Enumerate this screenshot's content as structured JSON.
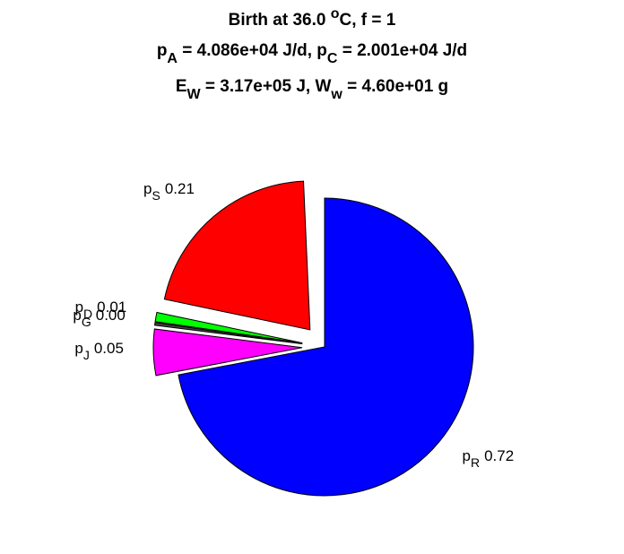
{
  "chart_data": {
    "type": "pie",
    "title": [
      [
        {
          "text": "Birth at 36.0 "
        },
        {
          "text": "o",
          "shift": "sup"
        },
        {
          "text": "C, f = 1"
        }
      ],
      [
        {
          "text": "p"
        },
        {
          "text": "A",
          "shift": "sub"
        },
        {
          "text": " = 4.086e+04 J/d, p"
        },
        {
          "text": "C",
          "shift": "sub"
        },
        {
          "text": " = 2.001e+04 J/d"
        }
      ],
      [
        {
          "text": "E"
        },
        {
          "text": "W",
          "shift": "sub"
        },
        {
          "text": " = 3.17e+05 J, W"
        },
        {
          "text": "w",
          "shift": "sub"
        },
        {
          "text": " = 4.60e+01 g"
        }
      ]
    ],
    "label_base": "p",
    "categories": [
      "R",
      "J",
      "G",
      "D",
      "S"
    ],
    "values": [
      0.72,
      0.05,
      0.003,
      0.01,
      0.21
    ],
    "value_labels": [
      "0.72",
      "0.05",
      "0.00",
      "0.01",
      "0.21"
    ],
    "colors": [
      "#0000ff",
      "#ff00ff",
      "#404040",
      "#00ff00",
      "#ff0000"
    ],
    "explode": [
      false,
      true,
      true,
      true,
      true
    ]
  }
}
